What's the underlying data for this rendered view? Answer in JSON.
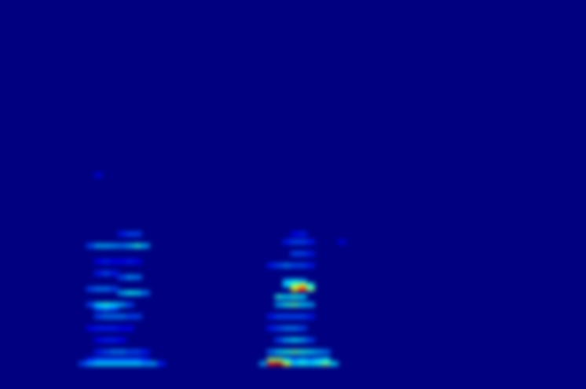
{
  "chart_data": {
    "type": "heatmap",
    "xlim": [
      0,
      74.6
    ],
    "ylim": [
      0,
      99
    ],
    "tick_labels": false,
    "color_range": [
      0,
      1
    ],
    "cells": [
      [
        10,
        6,
        0.2
      ],
      [
        11,
        6,
        0.3
      ],
      [
        12,
        6,
        0.35
      ],
      [
        13,
        6,
        0.35
      ],
      [
        14,
        6,
        0.35
      ],
      [
        15,
        6,
        0.35
      ],
      [
        16,
        6,
        0.35
      ],
      [
        17,
        6,
        0.35
      ],
      [
        18,
        6,
        0.3
      ],
      [
        19,
        6,
        0.3
      ],
      [
        20,
        6,
        0.15
      ],
      [
        11,
        7,
        0.15
      ],
      [
        12,
        7,
        0.2
      ],
      [
        13,
        7,
        0.2
      ],
      [
        14,
        7,
        0.2
      ],
      [
        15,
        7,
        0.2
      ],
      [
        16,
        7,
        0.2
      ],
      [
        17,
        7,
        0.2
      ],
      [
        18,
        7,
        0.15
      ],
      [
        12,
        9,
        0.15
      ],
      [
        13,
        9,
        0.2
      ],
      [
        14,
        9,
        0.25
      ],
      [
        15,
        9,
        0.25
      ],
      [
        16,
        9,
        0.2
      ],
      [
        17,
        9,
        0.2
      ],
      [
        18,
        9,
        0.15
      ],
      [
        12,
        12,
        0.12
      ],
      [
        13,
        12,
        0.15
      ],
      [
        14,
        12,
        0.15
      ],
      [
        15,
        12,
        0.12
      ],
      [
        11,
        15,
        0.12
      ],
      [
        12,
        15,
        0.15
      ],
      [
        13,
        15,
        0.15
      ],
      [
        14,
        15,
        0.15
      ],
      [
        15,
        15,
        0.12
      ],
      [
        16,
        15,
        0.12
      ],
      [
        12,
        18,
        0.2
      ],
      [
        13,
        18,
        0.25
      ],
      [
        14,
        18,
        0.25
      ],
      [
        15,
        18,
        0.25
      ],
      [
        16,
        18,
        0.2
      ],
      [
        17,
        18,
        0.2
      ],
      [
        12,
        20,
        0.2
      ],
      [
        13,
        20,
        0.25
      ],
      [
        14,
        20,
        0.2
      ],
      [
        11,
        21,
        0.2
      ],
      [
        12,
        21,
        0.35
      ],
      [
        13,
        21,
        0.4
      ],
      [
        14,
        21,
        0.35
      ],
      [
        15,
        21,
        0.3
      ],
      [
        16,
        21,
        0.2
      ],
      [
        15,
        24,
        0.3
      ],
      [
        16,
        24,
        0.38
      ],
      [
        17,
        24,
        0.35
      ],
      [
        18,
        24,
        0.25
      ],
      [
        11,
        25,
        0.2
      ],
      [
        12,
        25,
        0.25
      ],
      [
        13,
        25,
        0.25
      ],
      [
        14,
        25,
        0.2
      ],
      [
        15,
        28,
        0.2
      ],
      [
        16,
        28,
        0.28
      ],
      [
        17,
        28,
        0.25
      ],
      [
        12,
        29,
        0.15
      ],
      [
        13,
        29,
        0.2
      ],
      [
        14,
        29,
        0.15
      ],
      [
        12,
        32,
        0.12
      ],
      [
        13,
        32,
        0.15
      ],
      [
        14,
        32,
        0.12
      ],
      [
        15,
        32,
        0.12
      ],
      [
        16,
        32,
        0.15
      ],
      [
        17,
        32,
        0.12
      ],
      [
        11,
        36,
        0.2
      ],
      [
        12,
        36,
        0.3
      ],
      [
        13,
        36,
        0.3
      ],
      [
        14,
        36,
        0.28
      ],
      [
        15,
        36,
        0.25
      ],
      [
        16,
        36,
        0.3
      ],
      [
        17,
        36,
        0.4
      ],
      [
        18,
        36,
        0.3
      ],
      [
        15,
        39,
        0.15
      ],
      [
        16,
        39,
        0.2
      ],
      [
        17,
        39,
        0.2
      ],
      [
        12,
        54,
        0.1
      ],
      [
        33,
        6,
        0.3
      ],
      [
        34,
        6,
        0.9
      ],
      [
        35,
        6,
        0.95
      ],
      [
        36,
        6,
        0.6
      ],
      [
        37,
        6,
        0.35
      ],
      [
        38,
        6,
        0.4
      ],
      [
        39,
        6,
        0.35
      ],
      [
        40,
        6,
        0.4
      ],
      [
        41,
        6,
        0.5
      ],
      [
        42,
        6,
        0.35
      ],
      [
        34,
        7,
        0.5
      ],
      [
        35,
        7,
        0.5
      ],
      [
        36,
        7,
        0.35
      ],
      [
        37,
        7,
        0.25
      ],
      [
        38,
        7,
        0.3
      ],
      [
        39,
        7,
        0.25
      ],
      [
        40,
        7,
        0.3
      ],
      [
        41,
        7,
        0.35
      ],
      [
        34,
        9,
        0.25
      ],
      [
        35,
        9,
        0.35
      ],
      [
        36,
        9,
        0.4
      ],
      [
        37,
        9,
        0.45
      ],
      [
        38,
        9,
        0.4
      ],
      [
        39,
        9,
        0.35
      ],
      [
        40,
        9,
        0.3
      ],
      [
        41,
        9,
        0.25
      ],
      [
        35,
        12,
        0.2
      ],
      [
        36,
        12,
        0.3
      ],
      [
        37,
        12,
        0.35
      ],
      [
        38,
        12,
        0.3
      ],
      [
        39,
        12,
        0.2
      ],
      [
        34,
        15,
        0.15
      ],
      [
        35,
        15,
        0.2
      ],
      [
        36,
        15,
        0.25
      ],
      [
        37,
        15,
        0.25
      ],
      [
        38,
        15,
        0.2
      ],
      [
        34,
        18,
        0.15
      ],
      [
        35,
        18,
        0.2
      ],
      [
        36,
        18,
        0.2
      ],
      [
        37,
        18,
        0.2
      ],
      [
        38,
        18,
        0.2
      ],
      [
        39,
        18,
        0.15
      ],
      [
        35,
        21,
        0.3
      ],
      [
        36,
        21,
        0.4
      ],
      [
        37,
        21,
        0.45
      ],
      [
        38,
        21,
        0.35
      ],
      [
        39,
        21,
        0.3
      ],
      [
        35,
        23,
        0.4
      ],
      [
        36,
        23,
        0.35
      ],
      [
        37,
        23,
        0.4
      ],
      [
        38,
        23,
        0.35
      ],
      [
        37,
        25,
        0.65
      ],
      [
        38,
        25,
        0.85
      ],
      [
        39,
        25,
        0.5
      ],
      [
        36,
        26,
        0.35
      ],
      [
        37,
        26,
        0.5
      ],
      [
        38,
        26,
        0.6
      ],
      [
        39,
        26,
        0.4
      ],
      [
        36,
        27,
        0.3
      ],
      [
        37,
        27,
        0.35
      ],
      [
        38,
        27,
        0.3
      ],
      [
        34,
        31,
        0.15
      ],
      [
        35,
        31,
        0.2
      ],
      [
        36,
        31,
        0.25
      ],
      [
        37,
        31,
        0.2
      ],
      [
        38,
        31,
        0.2
      ],
      [
        39,
        31,
        0.15
      ],
      [
        37,
        34,
        0.2
      ],
      [
        38,
        34,
        0.2
      ],
      [
        39,
        34,
        0.15
      ],
      [
        36,
        37,
        0.15
      ],
      [
        37,
        37,
        0.2
      ],
      [
        38,
        37,
        0.2
      ],
      [
        39,
        37,
        0.15
      ],
      [
        43,
        37,
        0.1
      ],
      [
        37,
        39,
        0.12
      ],
      [
        38,
        39,
        0.15
      ]
    ]
  }
}
